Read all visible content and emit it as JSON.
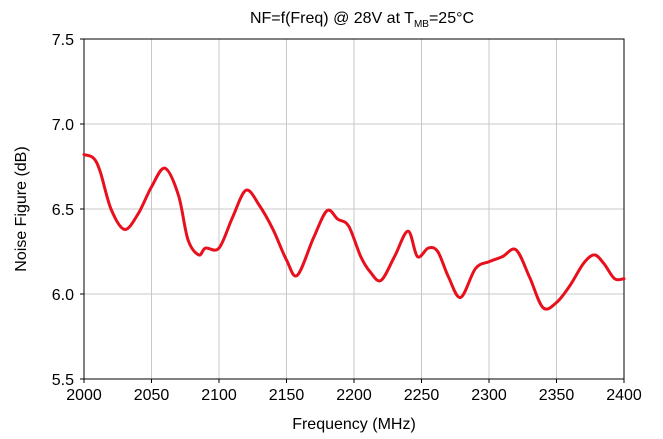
{
  "chart_data": {
    "type": "line",
    "title": {
      "prefix": "NF=f(Freq) @ 28V at T",
      "subscript": "MB",
      "suffix": "=25°C"
    },
    "xlabel": "Frequency (MHz)",
    "ylabel": "Noise Figure (dB)",
    "xlim": [
      2000,
      2400
    ],
    "ylim": [
      5.5,
      7.5
    ],
    "x_ticks": [
      2000,
      2050,
      2100,
      2150,
      2200,
      2250,
      2300,
      2350,
      2400
    ],
    "y_ticks": [
      5.5,
      6.0,
      6.5,
      7.0,
      7.5
    ],
    "x_tick_labels": [
      "2000",
      "2050",
      "2100",
      "2150",
      "2200",
      "2250",
      "2300",
      "2350",
      "2400"
    ],
    "y_tick_labels": [
      "5.5",
      "6.0",
      "6.5",
      "7.0",
      "7.5"
    ],
    "grid": true,
    "series": [
      {
        "color": "#e8101c",
        "x": [
          2000,
          2007,
          2012,
          2020,
          2030,
          2040,
          2050,
          2060,
          2070,
          2077,
          2085,
          2090,
          2100,
          2110,
          2120,
          2130,
          2140,
          2150,
          2158,
          2170,
          2180,
          2188,
          2196,
          2205,
          2212,
          2220,
          2230,
          2240,
          2247,
          2255,
          2262,
          2270,
          2279,
          2290,
          2300,
          2310,
          2320,
          2330,
          2340,
          2350,
          2360,
          2370,
          2378,
          2385,
          2393,
          2400
        ],
        "y": [
          6.82,
          6.8,
          6.72,
          6.5,
          6.38,
          6.47,
          6.63,
          6.74,
          6.58,
          6.32,
          6.23,
          6.27,
          6.27,
          6.45,
          6.61,
          6.52,
          6.38,
          6.2,
          6.11,
          6.33,
          6.49,
          6.44,
          6.4,
          6.22,
          6.13,
          6.08,
          6.22,
          6.37,
          6.22,
          6.27,
          6.25,
          6.1,
          5.98,
          6.15,
          6.19,
          6.22,
          6.26,
          6.1,
          5.92,
          5.95,
          6.05,
          6.18,
          6.23,
          6.18,
          6.09,
          6.09
        ]
      }
    ]
  }
}
